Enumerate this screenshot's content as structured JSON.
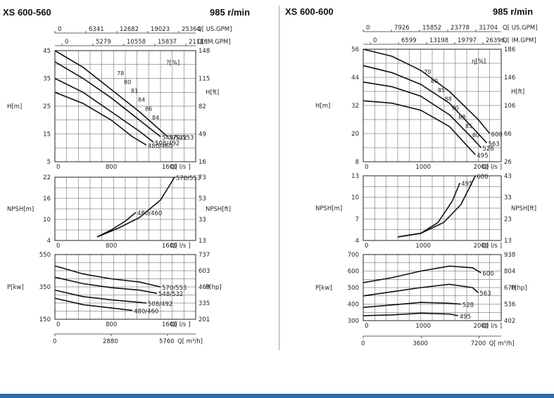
{
  "left": {
    "model": "XS 600-560",
    "speed": "985 r/min",
    "us_gpm_ticks": [
      "0",
      "6341",
      "12682",
      "19023",
      "25364"
    ],
    "us_gpm_unit": "Q[ US.GPM]",
    "im_gpm_ticks": [
      "0",
      "5279",
      "10558",
      "15837",
      "21116"
    ],
    "im_gpm_unit": "Q[ IM.GPM]",
    "eff_label": "?[%]",
    "head_chart": {
      "type": "line",
      "ylabel": "H[m]",
      "ylabel2": "H[ft]",
      "y_ticks": [
        "45",
        "35",
        "25",
        "15",
        "5"
      ],
      "y2_ticks": [
        "148",
        "115",
        "82",
        "49",
        "16"
      ],
      "x_ticks": [
        "0",
        "800",
        "1600"
      ],
      "x_unit": "Q[ l/s ]",
      "xlim": [
        0,
        2000
      ],
      "ylim": [
        5,
        45
      ],
      "series": [
        {
          "name": "570/553",
          "x": [
            0,
            400,
            800,
            1200,
            1600
          ],
          "y": [
            45,
            39,
            31,
            23,
            14
          ]
        },
        {
          "name": "548/532",
          "x": [
            0,
            400,
            800,
            1200,
            1500
          ],
          "y": [
            41,
            35,
            28,
            20,
            14
          ]
        },
        {
          "name": "508/492",
          "x": [
            0,
            400,
            800,
            1200,
            1400
          ],
          "y": [
            35,
            30,
            23,
            16,
            12
          ]
        },
        {
          "name": "480/460",
          "x": [
            0,
            400,
            800,
            1100,
            1300
          ],
          "y": [
            30,
            26,
            20,
            14,
            11
          ]
        }
      ],
      "efficiency_labels": [
        "78",
        "80",
        "81",
        "84",
        "86",
        "84"
      ]
    },
    "npsh_chart": {
      "type": "line",
      "ylabel": "NPSH[m]",
      "ylabel2": "NPSH[ft]",
      "y_ticks": [
        "22",
        "16",
        "10",
        "4"
      ],
      "y2_ticks": [
        "73",
        "53",
        "33",
        "13"
      ],
      "x_ticks": [
        "0",
        "800",
        "1600"
      ],
      "x_unit": "Q[ l/s ]",
      "xlim": [
        0,
        2000
      ],
      "ylim": [
        4,
        22
      ],
      "series": [
        {
          "name": "570/553",
          "x": [
            600,
            900,
            1200,
            1500,
            1700
          ],
          "y": [
            5,
            7.5,
            10.5,
            15.5,
            22
          ]
        },
        {
          "name": "480/460",
          "x": [
            600,
            800,
            1000,
            1150
          ],
          "y": [
            5,
            7,
            9.5,
            12
          ]
        }
      ]
    },
    "power_chart": {
      "type": "line",
      "ylabel": "P[kw]",
      "ylabel2": "P[hp]",
      "y_ticks": [
        "550",
        "350",
        "150"
      ],
      "y2_ticks": [
        "737",
        "603",
        "469",
        "335",
        "201"
      ],
      "x_ticks": [
        "0",
        "800",
        "1600"
      ],
      "x_unit": "Q[ l/s ]",
      "xlim": [
        0,
        2000
      ],
      "ylim": [
        150,
        550
      ],
      "series": [
        {
          "name": "570/553",
          "x": [
            0,
            400,
            800,
            1200,
            1500
          ],
          "y": [
            480,
            430,
            400,
            380,
            350
          ]
        },
        {
          "name": "548/532",
          "x": [
            0,
            400,
            800,
            1200,
            1450
          ],
          "y": [
            410,
            370,
            345,
            330,
            310
          ]
        },
        {
          "name": "508/492",
          "x": [
            0,
            400,
            800,
            1200,
            1300
          ],
          "y": [
            330,
            290,
            270,
            255,
            250
          ]
        },
        {
          "name": "480/460",
          "x": [
            0,
            400,
            800,
            1100
          ],
          "y": [
            280,
            240,
            220,
            205
          ]
        }
      ]
    },
    "m3h_ticks": [
      "0",
      "2880",
      "5760"
    ],
    "m3h_unit": "Q[ m³/h]"
  },
  "right": {
    "model": "XS 600-600",
    "speed": "985 r/min",
    "us_gpm_ticks": [
      "0",
      "7926",
      "15852",
      "23778",
      "31704"
    ],
    "us_gpm_unit": "Q[ US.GPM]",
    "im_gpm_ticks": [
      "0",
      "6599",
      "13198",
      "19797",
      "26396"
    ],
    "im_gpm_unit": "Q[ IM.GPM]",
    "eff_label": "η[%]",
    "head_chart": {
      "type": "line",
      "ylabel": "H[m]",
      "ylabel2": "H[ft]",
      "y_ticks": [
        "56",
        "44",
        "32",
        "20",
        "8"
      ],
      "y2_ticks": [
        "186",
        "146",
        "106",
        "66",
        "26"
      ],
      "x_ticks": [
        "0",
        "1000",
        "2000"
      ],
      "x_unit": "Q[ l/s ]",
      "xlim": [
        0,
        2400
      ],
      "ylim": [
        8,
        56
      ],
      "series": [
        {
          "name": "600",
          "x": [
            0,
            500,
            1000,
            1500,
            2000,
            2200
          ],
          "y": [
            56,
            53,
            47,
            38,
            26,
            20
          ]
        },
        {
          "name": "563",
          "x": [
            0,
            500,
            1000,
            1500,
            2000,
            2150
          ],
          "y": [
            49,
            46,
            41,
            33,
            20,
            16
          ]
        },
        {
          "name": "528",
          "x": [
            0,
            500,
            1000,
            1500,
            1900,
            2050
          ],
          "y": [
            42,
            40,
            36,
            28,
            18,
            14
          ]
        },
        {
          "name": "495",
          "x": [
            0,
            500,
            1000,
            1500,
            1800,
            1950
          ],
          "y": [
            34,
            33,
            30,
            23,
            15,
            11
          ]
        }
      ],
      "efficiency_labels": [
        "70",
        "80",
        "85",
        "88",
        "90",
        "88",
        "85",
        "80"
      ]
    },
    "npsh_chart": {
      "type": "line",
      "ylabel": "NPSH[m]",
      "ylabel2": "NPSH[ft]",
      "y_ticks": [
        "13",
        "10",
        "7",
        "4"
      ],
      "y2_ticks": [
        "43",
        "33",
        "23",
        "13"
      ],
      "x_ticks": [
        "0",
        "1000",
        "2000"
      ],
      "x_unit": "Q[ l/s ]",
      "xlim": [
        0,
        2400
      ],
      "ylim": [
        4,
        13
      ],
      "series": [
        {
          "name": "600",
          "x": [
            600,
            1000,
            1400,
            1700,
            1950
          ],
          "y": [
            4.5,
            5,
            6.5,
            9,
            13
          ]
        },
        {
          "name": "495",
          "x": [
            600,
            1000,
            1300,
            1550,
            1680
          ],
          "y": [
            4.5,
            5,
            6.5,
            9.5,
            12
          ]
        }
      ]
    },
    "power_chart": {
      "type": "line",
      "ylabel": "P[kw]",
      "ylabel2": "P[hp]",
      "y_ticks": [
        "700",
        "600",
        "500",
        "400",
        "300"
      ],
      "y2_ticks": [
        "938",
        "804",
        "670",
        "536",
        "402"
      ],
      "x_ticks": [
        "0",
        "1000",
        "2000"
      ],
      "x_unit": "Q[ l/s ]",
      "xlim": [
        0,
        2400
      ],
      "ylim": [
        300,
        700
      ],
      "series": [
        {
          "name": "600",
          "x": [
            0,
            500,
            1000,
            1500,
            1900,
            2050
          ],
          "y": [
            530,
            560,
            600,
            630,
            620,
            590
          ]
        },
        {
          "name": "563",
          "x": [
            0,
            500,
            1000,
            1500,
            1900,
            2000
          ],
          "y": [
            450,
            475,
            500,
            520,
            500,
            470
          ]
        },
        {
          "name": "528",
          "x": [
            0,
            500,
            1000,
            1500,
            1700
          ],
          "y": [
            380,
            395,
            410,
            405,
            400
          ]
        },
        {
          "name": "495",
          "x": [
            0,
            500,
            1000,
            1500,
            1650
          ],
          "y": [
            330,
            335,
            345,
            340,
            330
          ]
        }
      ]
    },
    "m3h_ticks": [
      "0",
      "3600",
      "7200"
    ],
    "m3h_unit": "Q[ m³/h]"
  }
}
